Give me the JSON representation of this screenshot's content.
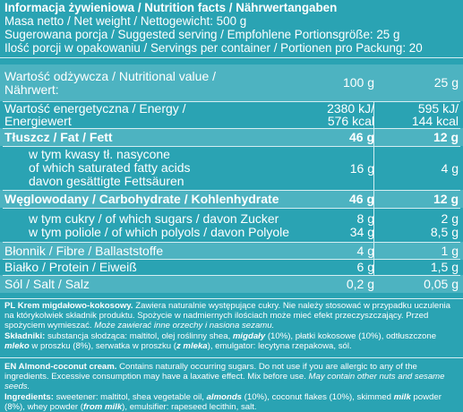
{
  "header": {
    "title": "Informacja żywieniowa / Nutrition facts / Nährwertangaben",
    "net_weight": "Masa netto / Net weight / Nettogewicht: 500 g",
    "serving": "Sugerowana porcja / Suggested serving / Empfohlene Portionsgröße: 25 g",
    "servings_per_container": "Ilość porcji w opakowaniu / Servings per container / Portionen pro Packung: 20"
  },
  "table": {
    "rows": [
      {
        "label": "Wartość odżywcza / Nutritional value /",
        "label2": "Nährwert:",
        "v1": "100 g",
        "v2": "25 g"
      },
      {
        "label": "Wartość energetyczna / Energy /",
        "label2": "Energiewert",
        "v1": "2380 kJ/",
        "v1b": "576 kcal",
        "v2": "595 kJ/",
        "v2b": "144 kcal"
      },
      {
        "label": "Tłuszcz / Fat / Fett",
        "v1": "46 g",
        "v2": "12 g"
      },
      {
        "label": "w tym kwasy tł. nasycone",
        "label2": "of which saturated fatty acids",
        "label3": "davon gesättigte Fettsäuren",
        "v1": "16 g",
        "v2": "4 g"
      },
      {
        "label": "Węglowodany / Carbohydrate / Kohlenhydrate",
        "v1": "46 g",
        "v2": "12 g"
      },
      {
        "label": "w tym cukry / of which sugars / davon Zucker",
        "v1": "8 g",
        "v2": "2 g"
      },
      {
        "label": "w tym poliole / of which polyols / davon Polyole",
        "v1": "34 g",
        "v2": "8,5 g"
      },
      {
        "label": "Błonnik / Fibre / Ballaststoffe",
        "v1": "4 g",
        "v2": "1 g"
      },
      {
        "label": "Białko / Protein / Eiweiß",
        "v1": "6 g",
        "v2": "1,5 g"
      },
      {
        "label": "Sól / Salt / Salz",
        "v1": "0,2 g",
        "v2": "0,05 g"
      }
    ]
  },
  "pl_text": {
    "name": "PL Krem migdałowo-kokosowy.",
    "desc1": " Zawiera naturalnie występujące cukry. Nie należy stosować w przypadku uczulenia na którykolwiek składnik produktu. Spożycie w nadmiernych ilościach może mieć efekt przeczyszczający. Przed spożyciem wymieszać. ",
    "warn": "Może zawierać inne orzechy i nasiona sezamu.",
    "ing_label": "Składniki:",
    "ing1": " substancja słodząca: maltitol, olej roślinny shea, ",
    "ing_almonds": "migdały",
    "ing2": " (10%), płatki kokosowe (10%), odtłuszczone ",
    "ing_milk": "mleko",
    "ing3": " w proszku (8%), serwatka w proszku (",
    "ing_milk2": "z mleka",
    "ing4": "), emulgator: lecytyna rzepakowa, sól."
  },
  "en_text": {
    "name": "EN Almond-coconut cream.",
    "desc1": " Contains naturally occurring sugars. Do not use if you are allergic to any of the ingredients. Excessive consumption may have a laxative effect. Mix before use. ",
    "warn": "May contain other nuts and sesame seeds.",
    "ing_label": "Ingredients:",
    "ing1": " sweetener: maltitol, shea vegetable oil, ",
    "ing_almonds": "almonds",
    "ing2": " (10%), coconut flakes (10%), skimmed ",
    "ing_milk": "milk",
    "ing3": " powder (8%), whey powder (",
    "ing_milk2": "from milk",
    "ing4": "), emulsifier: rapeseed lecithin, salt."
  }
}
